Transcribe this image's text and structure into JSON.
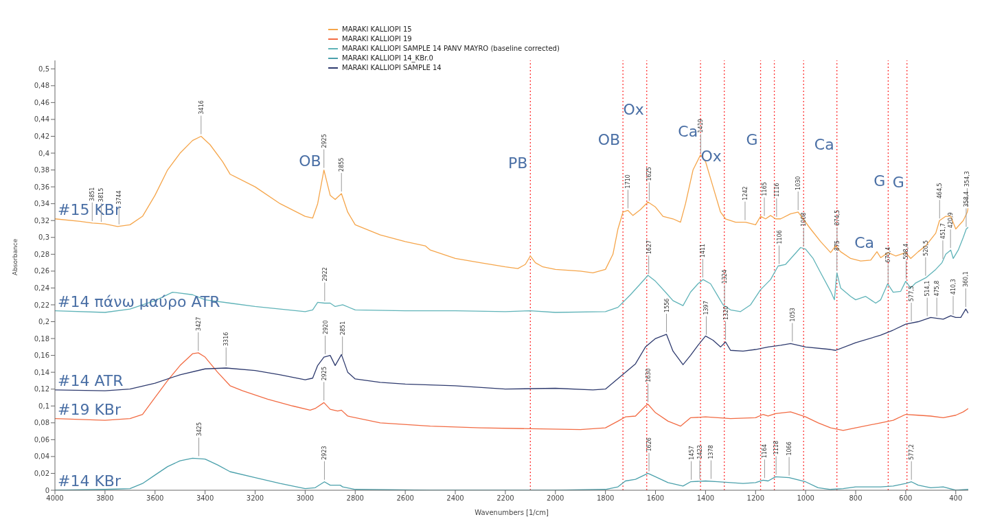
{
  "chart_data": {
    "type": "line",
    "xlabel": "Wavenumbers [1/cm]",
    "ylabel": "Absorbance",
    "xlim": [
      4000,
      350
    ],
    "xticks": [
      4000,
      3800,
      3600,
      3400,
      3200,
      3000,
      2800,
      2600,
      2400,
      2200,
      2000,
      1800,
      1600,
      1400,
      1200,
      1000,
      800,
      600,
      400
    ],
    "ylim": [
      0,
      0.51
    ],
    "yticks": [
      {
        "value": 0,
        "label": "0"
      },
      {
        "value": 0.02,
        "label": "0,02"
      },
      {
        "value": 0.04,
        "label": "0,04"
      },
      {
        "value": 0.06,
        "label": "0,06"
      },
      {
        "value": 0.08,
        "label": "0,08"
      },
      {
        "value": 0.1,
        "label": "0,1"
      },
      {
        "value": 0.12,
        "label": "0,12"
      },
      {
        "value": 0.14,
        "label": "0,14"
      },
      {
        "value": 0.16,
        "label": "0,16"
      },
      {
        "value": 0.18,
        "label": "0,18"
      },
      {
        "value": 0.2,
        "label": "0,2"
      },
      {
        "value": 0.22,
        "label": "0,22"
      },
      {
        "value": 0.24,
        "label": "0,24"
      },
      {
        "value": 0.26,
        "label": "0,26"
      },
      {
        "value": 0.28,
        "label": "0,28"
      },
      {
        "value": 0.3,
        "label": "0,3"
      },
      {
        "value": 0.32,
        "label": "0,32"
      },
      {
        "value": 0.34,
        "label": "0,34"
      },
      {
        "value": 0.36,
        "label": "0,36"
      },
      {
        "value": 0.38,
        "label": "0,38"
      },
      {
        "value": 0.4,
        "label": "0,4"
      },
      {
        "value": 0.42,
        "label": "0,42"
      },
      {
        "value": 0.44,
        "label": "0,44"
      },
      {
        "value": 0.46,
        "label": "0,46"
      },
      {
        "value": 0.48,
        "label": "0,48"
      },
      {
        "value": 0.5,
        "label": "0,5"
      }
    ],
    "grid": false,
    "legend": "top",
    "marker": "none",
    "line_style": "solid",
    "series": [
      {
        "name": "MARAKI KALLIOPI 15",
        "color": "#f5a54a",
        "x": [
          4000,
          3900,
          3850,
          3800,
          3750,
          3700,
          3650,
          3600,
          3550,
          3500,
          3450,
          3416,
          3380,
          3330,
          3300,
          3200,
          3100,
          3000,
          2970,
          2950,
          2925,
          2900,
          2880,
          2855,
          2830,
          2800,
          2700,
          2600,
          2520,
          2500,
          2400,
          2300,
          2200,
          2150,
          2120,
          2100,
          2080,
          2050,
          2000,
          1900,
          1850,
          1800,
          1770,
          1750,
          1730,
          1710,
          1690,
          1660,
          1630,
          1600,
          1570,
          1530,
          1500,
          1480,
          1450,
          1420,
          1400,
          1370,
          1340,
          1320,
          1280,
          1240,
          1200,
          1180,
          1160,
          1140,
          1120,
          1100,
          1060,
          1030,
          1010,
          980,
          940,
          900,
          880,
          860,
          820,
          780,
          740,
          715,
          700,
          670,
          640,
          600,
          580,
          550,
          520,
          480,
          465,
          440,
          420,
          400,
          370,
          354,
          350
        ],
        "values": [
          0.322,
          0.319,
          0.317,
          0.316,
          0.313,
          0.315,
          0.325,
          0.35,
          0.38,
          0.4,
          0.415,
          0.42,
          0.41,
          0.39,
          0.375,
          0.36,
          0.34,
          0.325,
          0.323,
          0.34,
          0.38,
          0.35,
          0.345,
          0.352,
          0.33,
          0.315,
          0.303,
          0.295,
          0.29,
          0.285,
          0.275,
          0.27,
          0.265,
          0.263,
          0.268,
          0.278,
          0.27,
          0.265,
          0.262,
          0.26,
          0.258,
          0.262,
          0.28,
          0.31,
          0.33,
          0.332,
          0.326,
          0.333,
          0.342,
          0.336,
          0.325,
          0.322,
          0.318,
          0.34,
          0.38,
          0.398,
          0.39,
          0.36,
          0.33,
          0.322,
          0.318,
          0.318,
          0.315,
          0.325,
          0.322,
          0.326,
          0.322,
          0.322,
          0.328,
          0.33,
          0.322,
          0.31,
          0.295,
          0.282,
          0.29,
          0.283,
          0.275,
          0.272,
          0.273,
          0.283,
          0.276,
          0.282,
          0.278,
          0.282,
          0.275,
          0.283,
          0.29,
          0.305,
          0.32,
          0.325,
          0.325,
          0.31,
          0.32,
          0.33,
          0.335
        ]
      },
      {
        "name": "MARAKI KALLIOPI 19",
        "color": "#f26b43",
        "x": [
          4000,
          3800,
          3700,
          3650,
          3600,
          3550,
          3500,
          3450,
          3427,
          3400,
          3350,
          3300,
          3250,
          3150,
          3050,
          2980,
          2960,
          2925,
          2900,
          2870,
          2855,
          2830,
          2700,
          2500,
          2300,
          2100,
          1900,
          1800,
          1750,
          1720,
          1680,
          1640,
          1630,
          1600,
          1550,
          1500,
          1460,
          1400,
          1300,
          1200,
          1170,
          1150,
          1120,
          1060,
          1000,
          950,
          900,
          850,
          800,
          700,
          650,
          600,
          550,
          500,
          450,
          400,
          370,
          350
        ],
        "values": [
          0.085,
          0.083,
          0.085,
          0.09,
          0.11,
          0.13,
          0.148,
          0.162,
          0.163,
          0.158,
          0.14,
          0.124,
          0.118,
          0.108,
          0.1,
          0.095,
          0.097,
          0.104,
          0.096,
          0.094,
          0.095,
          0.088,
          0.08,
          0.076,
          0.074,
          0.073,
          0.072,
          0.074,
          0.082,
          0.087,
          0.088,
          0.1,
          0.102,
          0.092,
          0.082,
          0.076,
          0.086,
          0.087,
          0.085,
          0.086,
          0.09,
          0.088,
          0.091,
          0.093,
          0.087,
          0.08,
          0.074,
          0.071,
          0.074,
          0.08,
          0.083,
          0.09,
          0.089,
          0.088,
          0.086,
          0.089,
          0.093,
          0.097
        ]
      },
      {
        "name": "MARAKI KALLIOPI SAMPLE  14 PANV MAYRO (baseline corrected)",
        "color": "#5fb3b8",
        "x": [
          4000,
          3800,
          3700,
          3600,
          3530,
          3450,
          3400,
          3300,
          3200,
          3100,
          3000,
          2970,
          2950,
          2922,
          2900,
          2880,
          2850,
          2800,
          2600,
          2400,
          2200,
          2100,
          2000,
          1800,
          1750,
          1700,
          1660,
          1630,
          1600,
          1560,
          1530,
          1490,
          1460,
          1430,
          1410,
          1380,
          1350,
          1330,
          1300,
          1260,
          1220,
          1180,
          1140,
          1110,
          1080,
          1050,
          1020,
          1000,
          970,
          940,
          900,
          885,
          875,
          860,
          820,
          800,
          760,
          720,
          700,
          672,
          650,
          620,
          600,
          580,
          560,
          520,
          480,
          455,
          440,
          420,
          410,
          390,
          370,
          358,
          350
        ],
        "values": [
          0.213,
          0.211,
          0.215,
          0.225,
          0.235,
          0.232,
          0.226,
          0.222,
          0.218,
          0.215,
          0.212,
          0.214,
          0.223,
          0.222,
          0.222,
          0.218,
          0.22,
          0.214,
          0.213,
          0.213,
          0.212,
          0.213,
          0.211,
          0.212,
          0.217,
          0.232,
          0.245,
          0.255,
          0.248,
          0.235,
          0.225,
          0.219,
          0.235,
          0.245,
          0.25,
          0.245,
          0.23,
          0.22,
          0.214,
          0.212,
          0.22,
          0.238,
          0.25,
          0.266,
          0.268,
          0.278,
          0.288,
          0.286,
          0.275,
          0.258,
          0.236,
          0.226,
          0.258,
          0.24,
          0.23,
          0.226,
          0.23,
          0.222,
          0.226,
          0.245,
          0.235,
          0.236,
          0.248,
          0.24,
          0.246,
          0.252,
          0.262,
          0.27,
          0.28,
          0.285,
          0.275,
          0.285,
          0.3,
          0.31,
          0.312
        ]
      },
      {
        "name": "MARAKI KALLIOPI 14_KBr.0",
        "color": "#4aa0ab",
        "x": [
          4000,
          3800,
          3700,
          3650,
          3600,
          3550,
          3500,
          3450,
          3400,
          3350,
          3300,
          3200,
          3100,
          3000,
          2960,
          2923,
          2900,
          2860,
          2850,
          2800,
          2500,
          2000,
          1800,
          1750,
          1720,
          1680,
          1630,
          1600,
          1550,
          1490,
          1460,
          1400,
          1350,
          1250,
          1200,
          1170,
          1150,
          1120,
          1066,
          1000,
          950,
          900,
          850,
          800,
          700,
          650,
          600,
          577,
          550,
          500,
          450,
          400,
          350
        ],
        "values": [
          0,
          0.001,
          0.002,
          0.008,
          0.018,
          0.028,
          0.035,
          0.038,
          0.037,
          0.03,
          0.022,
          0.015,
          0.008,
          0.002,
          0.003,
          0.01,
          0.006,
          0.006,
          0.004,
          0.001,
          0,
          0,
          0.001,
          0.004,
          0.011,
          0.013,
          0.02,
          0.016,
          0.009,
          0.005,
          0.01,
          0.011,
          0.01,
          0.008,
          0.009,
          0.012,
          0.011,
          0.016,
          0.015,
          0.01,
          0.003,
          0.001,
          0.002,
          0.004,
          0.004,
          0.005,
          0.008,
          0.01,
          0.006,
          0.003,
          0.004,
          0,
          0.001
        ]
      },
      {
        "name": "MARAKI KALLIOPI SAMPLE 14",
        "color": "#2e3a6e",
        "x": [
          4000,
          3800,
          3700,
          3600,
          3500,
          3400,
          3316,
          3200,
          3100,
          3000,
          2970,
          2950,
          2925,
          2900,
          2880,
          2855,
          2830,
          2800,
          2700,
          2600,
          2400,
          2200,
          2000,
          1850,
          1800,
          1760,
          1720,
          1680,
          1640,
          1600,
          1556,
          1530,
          1490,
          1460,
          1430,
          1400,
          1370,
          1340,
          1320,
          1300,
          1250,
          1200,
          1150,
          1100,
          1060,
          1000,
          900,
          880,
          800,
          700,
          650,
          600,
          550,
          500,
          450,
          420,
          400,
          380,
          360,
          350
        ],
        "values": [
          0.119,
          0.118,
          0.12,
          0.127,
          0.137,
          0.144,
          0.145,
          0.142,
          0.137,
          0.131,
          0.133,
          0.148,
          0.158,
          0.16,
          0.148,
          0.161,
          0.14,
          0.132,
          0.128,
          0.126,
          0.124,
          0.12,
          0.121,
          0.119,
          0.12,
          0.13,
          0.14,
          0.15,
          0.17,
          0.18,
          0.185,
          0.165,
          0.149,
          0.16,
          0.172,
          0.183,
          0.178,
          0.17,
          0.176,
          0.166,
          0.165,
          0.167,
          0.17,
          0.172,
          0.174,
          0.17,
          0.167,
          0.166,
          0.175,
          0.184,
          0.19,
          0.197,
          0.2,
          0.205,
          0.203,
          0.207,
          0.205,
          0.205,
          0.215,
          0.21
        ]
      }
    ],
    "ref_lines": [
      {
        "axis": "x",
        "value": 2100,
        "color": "#ff3333",
        "line_style": "dotted"
      },
      {
        "axis": "x",
        "value": 1730,
        "color": "#ff3333",
        "line_style": "dotted"
      },
      {
        "axis": "x",
        "value": 1635,
        "color": "#ff3333",
        "line_style": "dotted"
      },
      {
        "axis": "x",
        "value": 1420,
        "color": "#ff3333",
        "line_style": "dotted"
      },
      {
        "axis": "x",
        "value": 1325,
        "color": "#ff3333",
        "line_style": "dotted"
      },
      {
        "axis": "x",
        "value": 1180,
        "color": "#ff3333",
        "line_style": "dotted"
      },
      {
        "axis": "x",
        "value": 1125,
        "color": "#ff3333",
        "line_style": "dotted"
      },
      {
        "axis": "x",
        "value": 1008,
        "color": "#ff3333",
        "line_style": "dotted"
      },
      {
        "axis": "x",
        "value": 875,
        "color": "#ff3333",
        "line_style": "dotted"
      },
      {
        "axis": "x",
        "value": 670,
        "color": "#ff3333",
        "line_style": "dotted"
      },
      {
        "axis": "x",
        "value": 595,
        "color": "#ff3333",
        "line_style": "dotted"
      }
    ],
    "annotations": [
      {
        "text": "#15 KBr",
        "x": 4000,
        "y": 0.322
      },
      {
        "text": "#14 πάνω μαύρο ATR",
        "x": 4000,
        "y": 0.213
      },
      {
        "text": "#14 ATR",
        "x": 4000,
        "y": 0.119
      },
      {
        "text": "#19 KBr",
        "x": 4000,
        "y": 0.085
      },
      {
        "text": "#14 KBr",
        "x": 4000,
        "y": 0
      },
      {
        "text": "OB",
        "x": 2925,
        "y": 0.38
      },
      {
        "text": "PB",
        "x": 2100,
        "y": 0.377
      },
      {
        "text": "OB",
        "x": 1730,
        "y": 0.405
      },
      {
        "text": "Ox",
        "x": 1635,
        "y": 0.441
      },
      {
        "text": "Ca",
        "x": 1420,
        "y": 0.415
      },
      {
        "text": "Ox",
        "x": 1325,
        "y": 0.385
      },
      {
        "text": "G",
        "x": 1180,
        "y": 0.405
      },
      {
        "text": "Ca",
        "x": 875,
        "y": 0.399
      },
      {
        "text": "Ca",
        "x": 715,
        "y": 0.283
      },
      {
        "text": "G",
        "x": 670,
        "y": 0.356
      },
      {
        "text": "G",
        "x": 595,
        "y": 0.354
      },
      {
        "text": "3851",
        "x": 3851,
        "y": 0.317
      },
      {
        "text": "3815",
        "x": 3815,
        "y": 0.316
      },
      {
        "text": "3744",
        "x": 3744,
        "y": 0.313
      },
      {
        "text": "3416",
        "x": 3416,
        "y": 0.42
      },
      {
        "text": "2925",
        "x": 2925,
        "y": 0.38
      },
      {
        "text": "2855",
        "x": 2855,
        "y": 0.352
      },
      {
        "text": "1710",
        "x": 1710,
        "y": 0.332
      },
      {
        "text": "1625",
        "x": 1625,
        "y": 0.341
      },
      {
        "text": "1419",
        "x": 1419,
        "y": 0.398
      },
      {
        "text": "1242",
        "x": 1242,
        "y": 0.318
      },
      {
        "text": "1165",
        "x": 1165,
        "y": 0.323
      },
      {
        "text": "1116",
        "x": 1116,
        "y": 0.322
      },
      {
        "text": "1030",
        "x": 1030,
        "y": 0.33
      },
      {
        "text": "874,5",
        "x": 874.5,
        "y": 0.288
      },
      {
        "text": "464,5",
        "x": 464.5,
        "y": 0.32
      },
      {
        "text": "354,3",
        "x": 354.3,
        "y": 0.334
      },
      {
        "text": "2922",
        "x": 2922,
        "y": 0.222
      },
      {
        "text": "1627",
        "x": 1627,
        "y": 0.254
      },
      {
        "text": "1411",
        "x": 1411,
        "y": 0.25
      },
      {
        "text": "1324",
        "x": 1324,
        "y": 0.219
      },
      {
        "text": "1106",
        "x": 1106,
        "y": 0.266
      },
      {
        "text": "1008",
        "x": 1008,
        "y": 0.287
      },
      {
        "text": "875",
        "x": 875,
        "y": 0.258
      },
      {
        "text": "670,4",
        "x": 670.4,
        "y": 0.244
      },
      {
        "text": "598,4",
        "x": 598.4,
        "y": 0.248
      },
      {
        "text": "520,5",
        "x": 520.5,
        "y": 0.252
      },
      {
        "text": "451,7",
        "x": 451.7,
        "y": 0.272
      },
      {
        "text": "420,9",
        "x": 420.9,
        "y": 0.285
      },
      {
        "text": "358,4",
        "x": 358.4,
        "y": 0.31
      },
      {
        "text": "3427",
        "x": 3427,
        "y": 0.163
      },
      {
        "text": "3316",
        "x": 3316,
        "y": 0.145
      },
      {
        "text": "2920",
        "x": 2920,
        "y": 0.159
      },
      {
        "text": "2851",
        "x": 2851,
        "y": 0.158
      },
      {
        "text": "2925",
        "x": 2925,
        "y": 0.104
      },
      {
        "text": "1556",
        "x": 1556,
        "y": 0.185
      },
      {
        "text": "1397",
        "x": 1397,
        "y": 0.182
      },
      {
        "text": "1320",
        "x": 1320,
        "y": 0.176
      },
      {
        "text": "1053",
        "x": 1053,
        "y": 0.174
      },
      {
        "text": "1630",
        "x": 1630,
        "y": 0.102
      },
      {
        "text": "577,5",
        "x": 577.5,
        "y": 0.198
      },
      {
        "text": "514,1",
        "x": 514.1,
        "y": 0.204
      },
      {
        "text": "475,8",
        "x": 475.8,
        "y": 0.204
      },
      {
        "text": "410,3",
        "x": 410.3,
        "y": 0.206
      },
      {
        "text": "360,1",
        "x": 360.1,
        "y": 0.215
      },
      {
        "text": "3425",
        "x": 3425,
        "y": 0.038
      },
      {
        "text": "2923",
        "x": 2923,
        "y": 0.01
      },
      {
        "text": "1626",
        "x": 1626,
        "y": 0.02
      },
      {
        "text": "1457",
        "x": 1457,
        "y": 0.01
      },
      {
        "text": "1423",
        "x": 1423,
        "y": 0.011
      },
      {
        "text": "1378",
        "x": 1378,
        "y": 0.011
      },
      {
        "text": "1164",
        "x": 1164,
        "y": 0.012
      },
      {
        "text": "1118",
        "x": 1118,
        "y": 0.016
      },
      {
        "text": "1066",
        "x": 1066,
        "y": 0.015
      },
      {
        "text": "577,2",
        "x": 577.2,
        "y": 0.01
      }
    ]
  }
}
